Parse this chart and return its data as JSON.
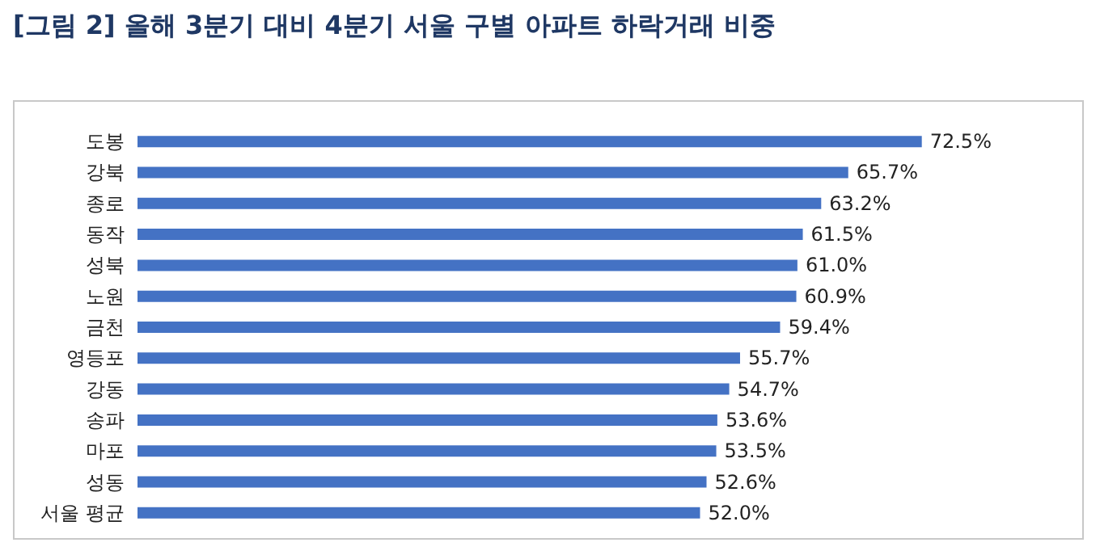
{
  "chart_data": {
    "type": "bar",
    "orientation": "horizontal",
    "title": "[그림 2] 올해 3분기 대비 4분기 서울 구별 아파트 하락거래 비중",
    "categories": [
      "도봉",
      "강북",
      "종로",
      "동작",
      "성북",
      "노원",
      "금천",
      "영등포",
      "강동",
      "송파",
      "마포",
      "성동",
      "서울 평균"
    ],
    "values": [
      72.5,
      65.7,
      63.2,
      61.5,
      61.0,
      60.9,
      59.4,
      55.7,
      54.7,
      53.6,
      53.5,
      52.6,
      52.0
    ],
    "value_labels": [
      "72.5%",
      "65.7%",
      "63.2%",
      "61.5%",
      "61.0%",
      "60.9%",
      "59.4%",
      "55.7%",
      "54.7%",
      "53.6%",
      "53.5%",
      "52.6%",
      "52.0%"
    ],
    "color": "#4472c4"
  }
}
